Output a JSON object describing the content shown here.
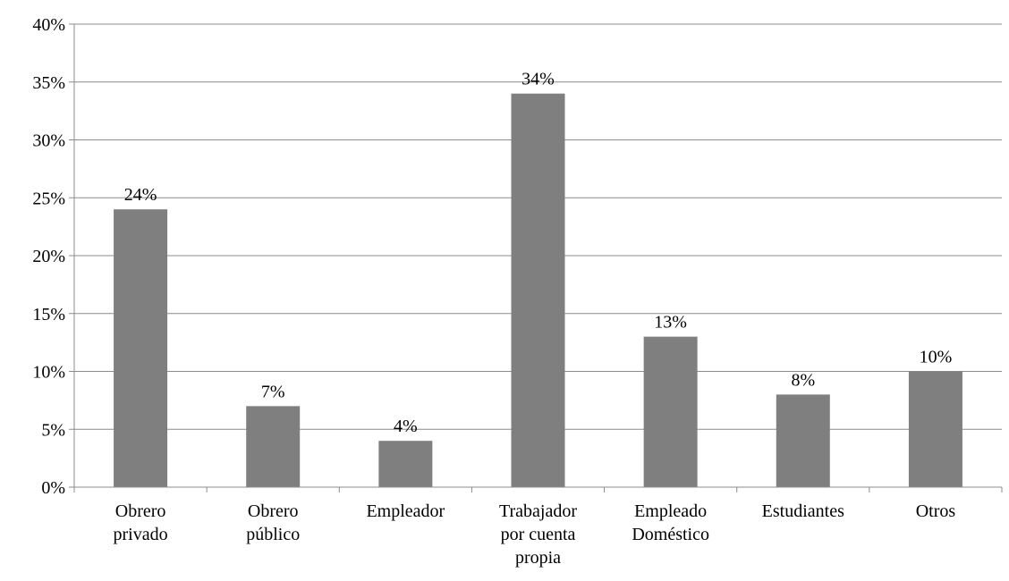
{
  "chart_data": {
    "type": "bar",
    "categories": [
      [
        "Obrero",
        "privado"
      ],
      [
        "Obrero",
        "público"
      ],
      [
        "Empleador"
      ],
      [
        "Trabajador",
        "por cuenta",
        "propia"
      ],
      [
        "Empleado",
        "Doméstico"
      ],
      [
        "Estudiantes"
      ],
      [
        "Otros"
      ]
    ],
    "values": [
      24,
      7,
      4,
      34,
      13,
      8,
      10
    ],
    "data_labels": [
      "24%",
      "7%",
      "4%",
      "34%",
      "13%",
      "8%",
      "10%"
    ],
    "y_ticks": [
      "0%",
      "5%",
      "10%",
      "15%",
      "20%",
      "25%",
      "30%",
      "35%",
      "40%"
    ],
    "y_unit": "%",
    "ylim": [
      0,
      40
    ],
    "grid": true,
    "legend": "none",
    "colors": {
      "bar": "#7f7f7f",
      "grid": "#8c8c8c"
    }
  }
}
